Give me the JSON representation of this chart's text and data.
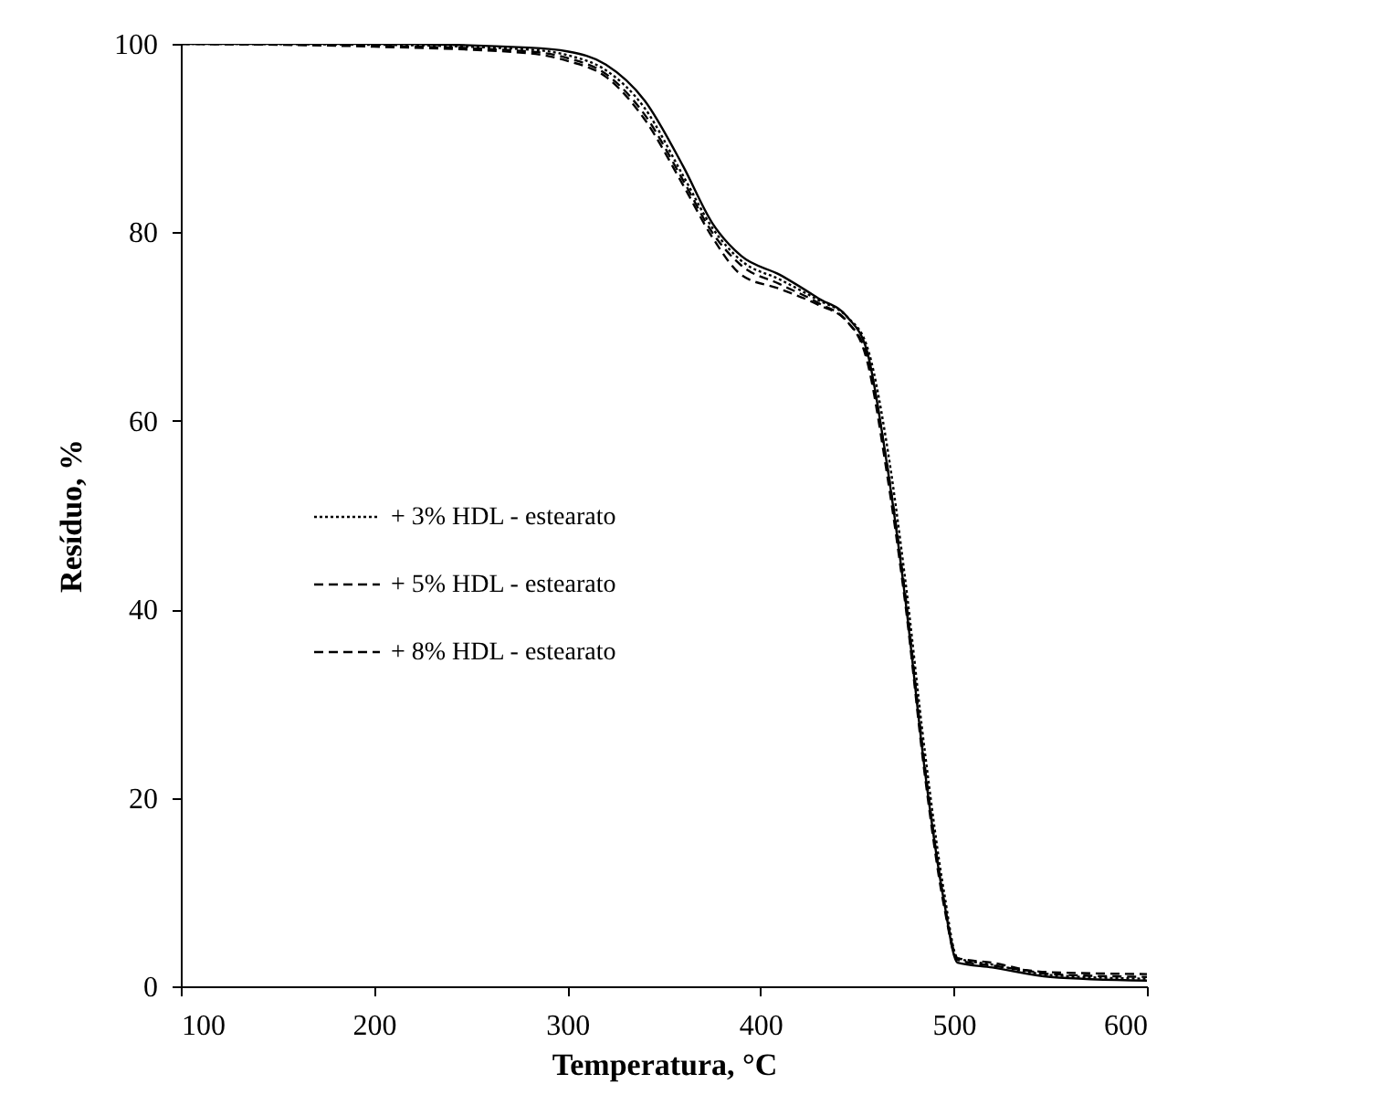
{
  "chart_data": {
    "type": "line",
    "xlabel": "Temperatura,  °C",
    "ylabel": "Resíduo,  %",
    "x": [
      100,
      200,
      280,
      300,
      320,
      340,
      360,
      375,
      390,
      410,
      430,
      445,
      455,
      465,
      475,
      485,
      495,
      502,
      520,
      550,
      600
    ],
    "series": [
      {
        "color": "#000000",
        "line_style": "solid",
        "values": [
          100,
          100,
          99.6,
          99.2,
          97.8,
          94,
          87,
          81,
          77.5,
          75.5,
          73,
          71,
          67.5,
          56,
          41,
          23,
          9,
          2.5,
          2,
          1,
          0.6
        ]
      },
      {
        "name": "+ 3% HDL - estearato",
        "color": "#000000",
        "line_style": "dotted",
        "values": [
          100,
          99.9,
          99.4,
          98.8,
          97.2,
          93.2,
          86,
          80.5,
          77,
          75,
          72.8,
          71,
          68,
          58,
          43,
          25,
          10,
          3,
          2.3,
          1.2,
          0.8
        ]
      },
      {
        "name": "+ 5% HDL - estearato",
        "color": "#000000",
        "line_style": "dashed",
        "values": [
          100,
          99.8,
          99.2,
          98.5,
          96.8,
          92.5,
          85.5,
          80,
          76.5,
          74.5,
          72.5,
          70.5,
          67,
          56,
          41.5,
          23.5,
          9,
          3,
          2.5,
          1.3,
          1
        ]
      },
      {
        "name": "+ 8% HDL - estearato",
        "color": "#000000",
        "line_style": "dashed",
        "values": [
          100,
          99.7,
          99,
          98.2,
          96.5,
          92,
          85,
          79.5,
          75.5,
          74,
          72.3,
          70.5,
          66.5,
          55,
          40.5,
          22.5,
          8.5,
          2.8,
          2.2,
          1.5,
          1.3
        ]
      }
    ],
    "xlim": [
      100,
      600
    ],
    "xticks": [
      100,
      200,
      300,
      400,
      500,
      600
    ],
    "ylim": [
      0,
      100
    ],
    "yticks": [
      0,
      20,
      40,
      60,
      80,
      100
    ],
    "grid": false,
    "legend": "left"
  }
}
